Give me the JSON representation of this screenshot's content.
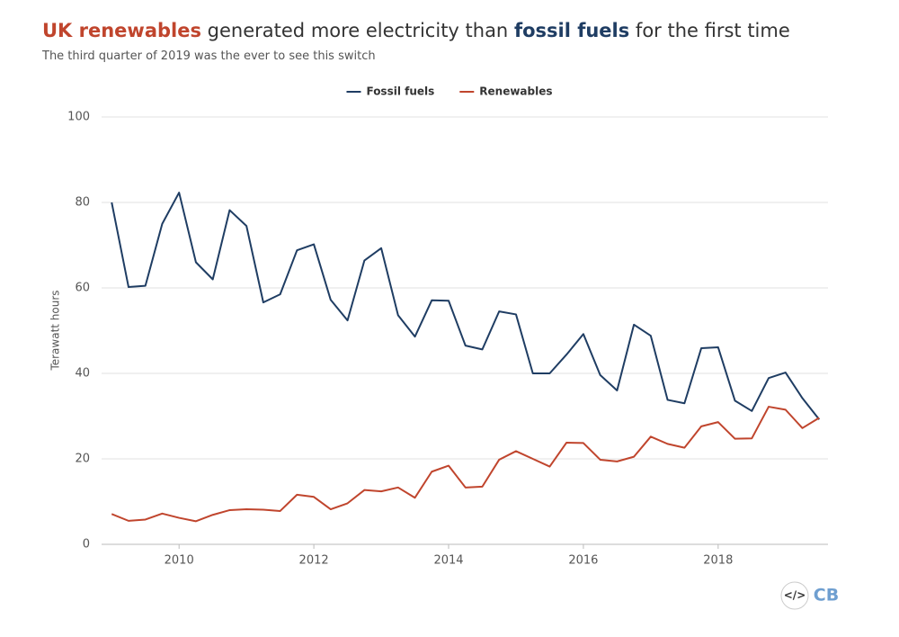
{
  "chart_data": {
    "type": "line",
    "title": [
      "UK renewables",
      "generated more electricity than",
      "fossil fuels",
      "for the first time"
    ],
    "subtitle": "The third quarter of 2019 was the ever to see this switch",
    "y_label": "Terawatt hours",
    "x": [
      2009,
      2009.25,
      2009.5,
      2009.75,
      2010,
      2010.25,
      2010.5,
      2010.75,
      2011,
      2011.25,
      2011.5,
      2011.75,
      2012,
      2012.25,
      2012.5,
      2012.75,
      2013,
      2013.25,
      2013.5,
      2013.75,
      2014,
      2014.25,
      2014.5,
      2014.75,
      2015,
      2015.25,
      2015.5,
      2015.75,
      2016,
      2016.25,
      2016.5,
      2016.75,
      2017,
      2017.25,
      2017.5,
      2017.75,
      2018,
      2018.25,
      2018.5,
      2018.75,
      2019,
      2019.25,
      2019.5
    ],
    "series": [
      {
        "name": "Fossil fuels",
        "color": "#1f3d63",
        "values": [
          80,
          60.2,
          60.5,
          75,
          82.3,
          66,
          62,
          78.2,
          74.5,
          56.6,
          58.5,
          68.8,
          70.2,
          57.2,
          52.4,
          66.4,
          69.3,
          53.6,
          48.6,
          57.1,
          57,
          46.5,
          45.6,
          54.5,
          53.8,
          40,
          40,
          44.4,
          49.2,
          39.6,
          36,
          51.4,
          48.8,
          33.8,
          33,
          45.9,
          46.1,
          33.6,
          31.2,
          38.9,
          40.2,
          34.2,
          29.2
        ]
      },
      {
        "name": "Renewables",
        "color": "#c0452d",
        "values": [
          7.1,
          5.5,
          5.8,
          7.2,
          6.2,
          5.4,
          6.9,
          8.0,
          8.2,
          8.1,
          7.8,
          11.6,
          11.1,
          8.2,
          9.6,
          12.7,
          12.4,
          13.3,
          10.9,
          17,
          18.4,
          13.3,
          13.5,
          19.8,
          21.8,
          20,
          18.2,
          23.8,
          23.7,
          19.8,
          19.4,
          20.5,
          25.2,
          23.5,
          22.6,
          27.6,
          28.6,
          24.7,
          24.8,
          32.2,
          31.5,
          27.2,
          29.6
        ]
      }
    ],
    "xlim": [
      2008.85,
      2019.63
    ],
    "xticks": [
      2010,
      2012,
      2014,
      2016,
      2018
    ],
    "ylim": [
      0,
      100
    ],
    "yticks": [
      0,
      20,
      40,
      60,
      80,
      100
    ],
    "grid": true,
    "legend": "top",
    "logo": "CB",
    "embed_icon": "</>"
  }
}
